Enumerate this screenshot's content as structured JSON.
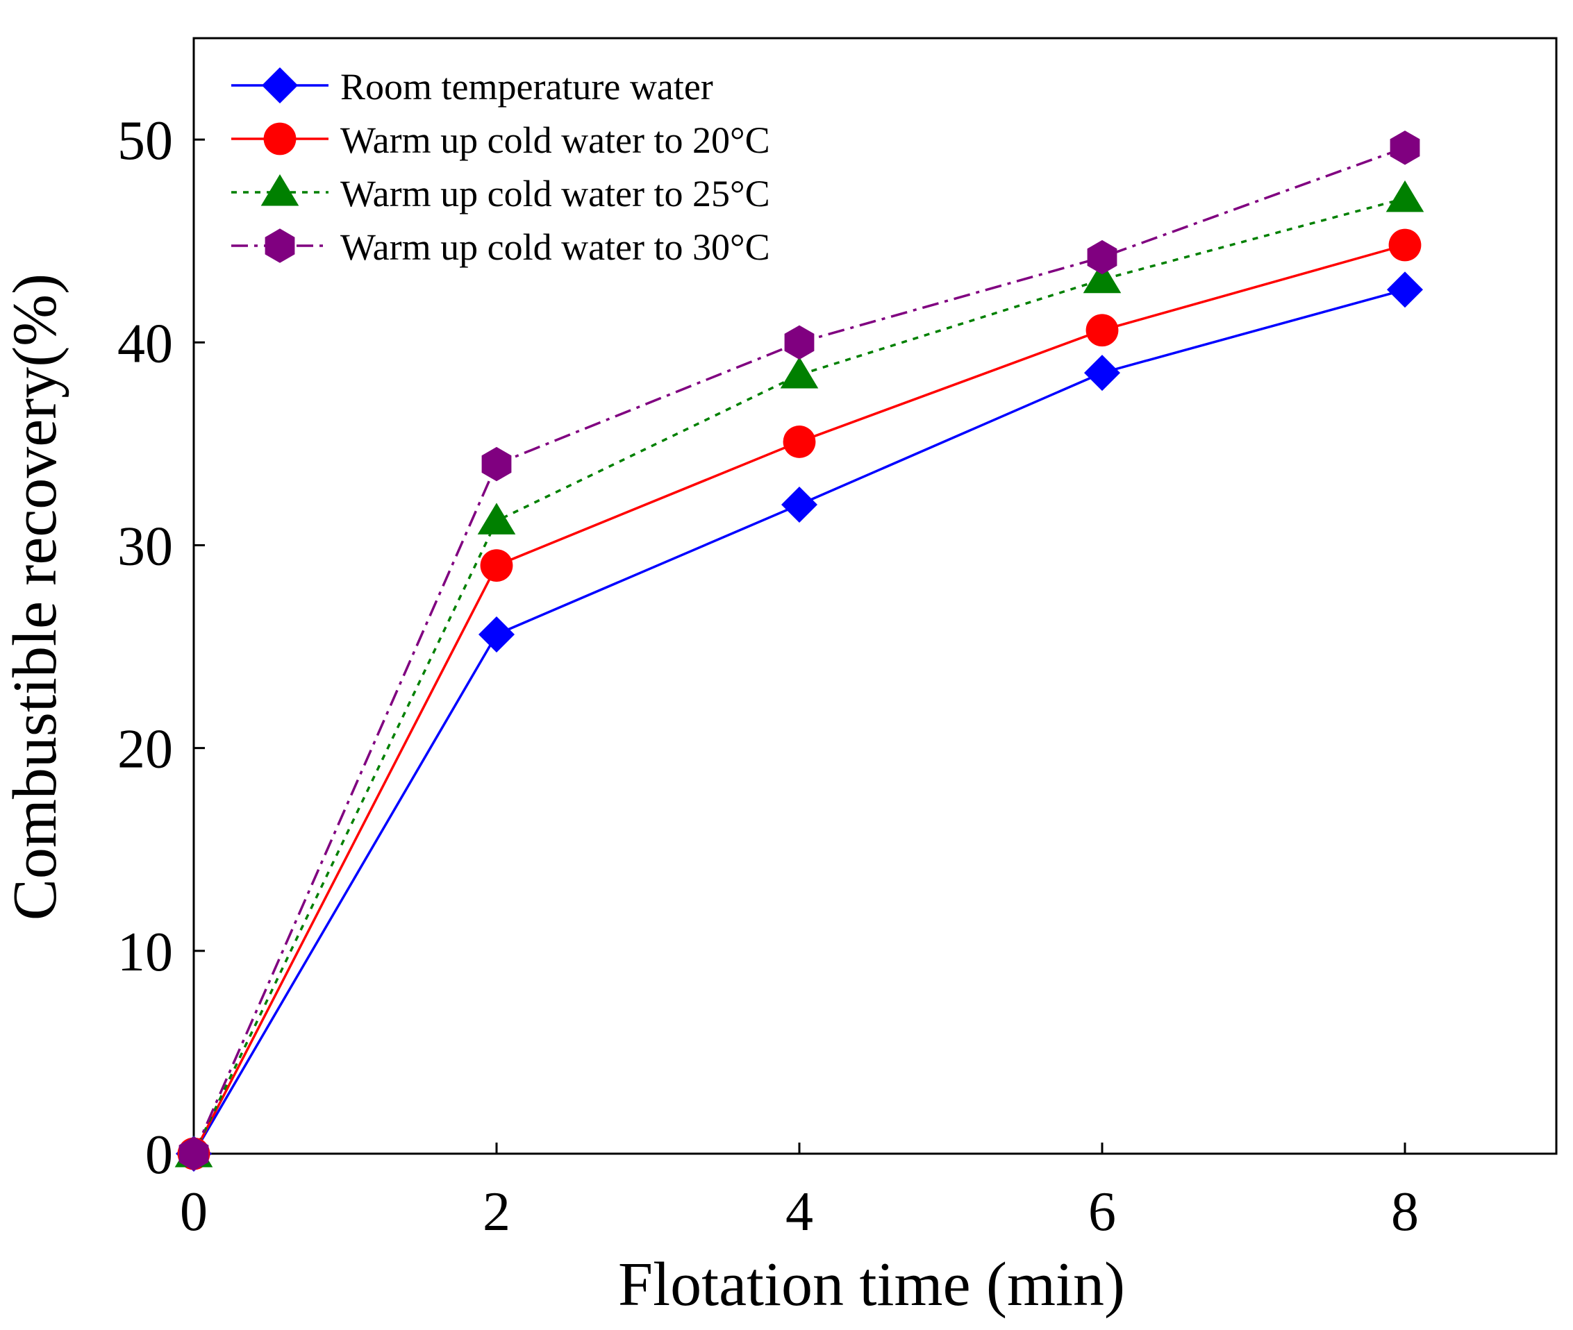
{
  "chart_data": {
    "type": "line",
    "title": "",
    "xlabel": "Flotation time (min)",
    "ylabel": "Combustible recovery(%)",
    "xlim": [
      0,
      9
    ],
    "ylim": [
      0,
      55
    ],
    "x_ticks": [
      0,
      2,
      4,
      6,
      8
    ],
    "y_ticks": [
      0,
      10,
      20,
      30,
      40,
      50
    ],
    "x_tick_labels": [
      "0",
      "2",
      "4",
      "6",
      "8"
    ],
    "y_tick_labels": [
      "0",
      "10",
      "20",
      "30",
      "40",
      "50"
    ],
    "grid": false,
    "legend_position": "top-left",
    "x": [
      0,
      2,
      4,
      6,
      8
    ],
    "series": [
      {
        "name": "Room temperature water",
        "values": [
          0,
          25.6,
          32.0,
          38.5,
          42.6
        ],
        "color": "#0000ff",
        "marker": "diamond",
        "dash": "solid"
      },
      {
        "name": "Warm up cold water to 20°C",
        "values": [
          0,
          29.0,
          35.1,
          40.6,
          44.8
        ],
        "color": "#ff0000",
        "marker": "circle",
        "dash": "solid"
      },
      {
        "name": "Warm up cold water to 25°C",
        "values": [
          0,
          31.2,
          38.4,
          43.1,
          47.1
        ],
        "color": "#008000",
        "marker": "triangle",
        "dash": "dot"
      },
      {
        "name": "Warm up cold water to 30°C",
        "values": [
          0,
          34.0,
          40.0,
          44.2,
          49.6
        ],
        "color": "#800080",
        "marker": "hexagon",
        "dash": "dashdot"
      }
    ]
  }
}
